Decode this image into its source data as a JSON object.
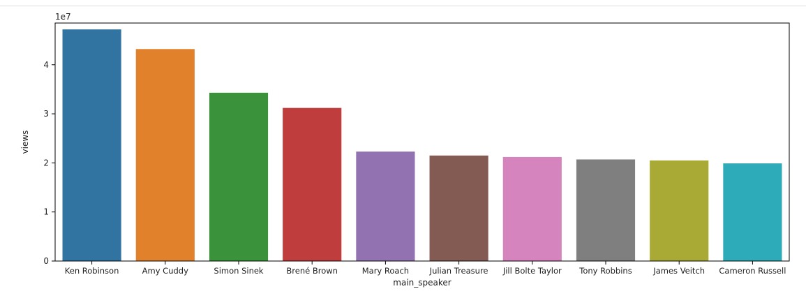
{
  "chart_data": {
    "type": "bar",
    "title": "",
    "xlabel": "main_speaker",
    "ylabel": "views",
    "offset_label": "1e7",
    "scale": 10000000,
    "ylim": [
      0,
      48500000
    ],
    "yticks": [
      0,
      1,
      2,
      3,
      4
    ],
    "grid": false,
    "categories": [
      "Ken Robinson",
      "Amy Cuddy",
      "Simon Sinek",
      "Brené Brown",
      "Mary Roach",
      "Julian Treasure",
      "Jill Bolte Taylor",
      "Tony Robbins",
      "James Veitch",
      "Cameron Russell"
    ],
    "values": [
      47200000,
      43200000,
      34300000,
      31200000,
      22300000,
      21500000,
      21200000,
      20700000,
      20500000,
      19900000
    ],
    "colors": [
      "#3274a1",
      "#e1812c",
      "#3a923a",
      "#c03d3e",
      "#9372b2",
      "#845b53",
      "#d684bd",
      "#7f7f7f",
      "#a9aa35",
      "#2eabb8"
    ]
  }
}
